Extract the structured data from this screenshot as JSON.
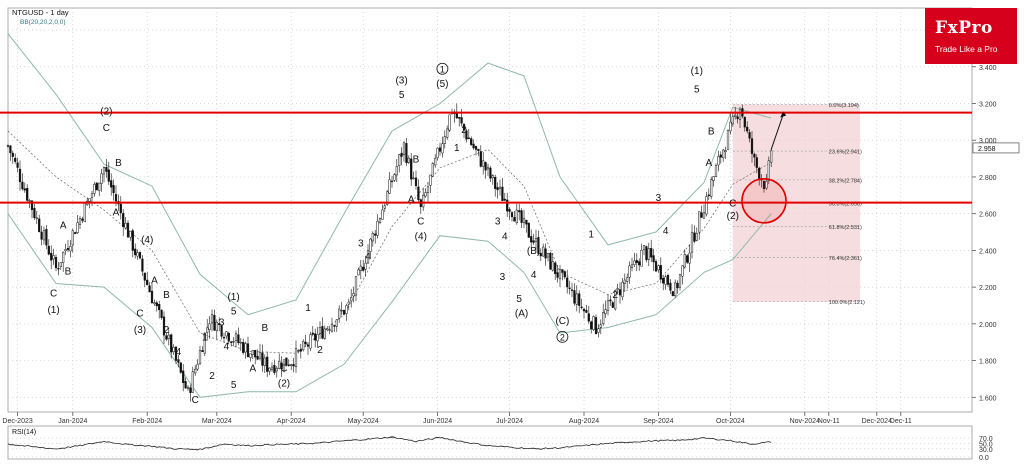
{
  "chart_data": {
    "type": "candlestick",
    "symbol_label": "NTGUSD - 1 day",
    "indicator_label": "BB(20,20,2,0,0)",
    "y_axis": {
      "ticks": [
        1.6,
        1.8,
        2.0,
        2.2,
        2.4,
        2.6,
        2.8,
        3.0,
        3.2,
        3.4,
        3.6
      ],
      "tick_labels": [
        "1.600",
        "1.800",
        "2.000",
        "2.200",
        "2.400",
        "2.600",
        "2.800",
        "3.000",
        "3.200",
        "3.400",
        "3.600"
      ],
      "range": [
        1.52,
        3.72
      ],
      "current_price": 2.958,
      "current_price_label": "2.958"
    },
    "x_axis": {
      "labels": [
        {
          "label": "Dec-2023",
          "idx": 4
        },
        {
          "label": "Jan-2024",
          "idx": 27
        },
        {
          "label": "Feb-2024",
          "idx": 58
        },
        {
          "label": "Mar-2024",
          "idx": 87
        },
        {
          "label": "Apr-2024",
          "idx": 118
        },
        {
          "label": "May-2024",
          "idx": 148
        },
        {
          "label": "Jun-2024",
          "idx": 179
        },
        {
          "label": "Jul-2024",
          "idx": 209
        },
        {
          "label": "Aug-2024",
          "idx": 240
        },
        {
          "label": "Sep-2024",
          "idx": 271
        },
        {
          "label": "Oct-2024",
          "idx": 301
        },
        {
          "label": "Nov-2024",
          "idx": 332
        },
        {
          "label": "Nov-11",
          "idx": 342
        },
        {
          "label": "Dec-2024",
          "idx": 362
        },
        {
          "label": "Dec-11",
          "idx": 372
        }
      ]
    },
    "price_path": [
      [
        0,
        2.97
      ],
      [
        20,
        2.3
      ],
      [
        40,
        2.85
      ],
      [
        75,
        1.62
      ],
      [
        84,
        2.03
      ],
      [
        108,
        1.77
      ],
      [
        118,
        1.8
      ],
      [
        142,
        2.1
      ],
      [
        165,
        2.97
      ],
      [
        172,
        2.62
      ],
      [
        185,
        3.17
      ],
      [
        203,
        2.75
      ],
      [
        245,
        1.98
      ],
      [
        265,
        2.4
      ],
      [
        278,
        2.18
      ],
      [
        297,
        2.92
      ],
      [
        305,
        3.19
      ],
      [
        311,
        2.88
      ],
      [
        316,
        2.74
      ],
      [
        318,
        2.95
      ]
    ],
    "bollinger": {
      "upper": [
        [
          0,
          3.58
        ],
        [
          20,
          3.25
        ],
        [
          40,
          2.87
        ],
        [
          60,
          2.75
        ],
        [
          80,
          2.27
        ],
        [
          100,
          2.05
        ],
        [
          120,
          2.13
        ],
        [
          140,
          2.6
        ],
        [
          160,
          3.05
        ],
        [
          180,
          3.2
        ],
        [
          200,
          3.42
        ],
        [
          215,
          3.35
        ],
        [
          230,
          2.8
        ],
        [
          250,
          2.43
        ],
        [
          270,
          2.5
        ],
        [
          290,
          2.77
        ],
        [
          302,
          3.18
        ],
        [
          318,
          3.12
        ]
      ],
      "middle": [
        [
          0,
          3.05
        ],
        [
          20,
          2.8
        ],
        [
          40,
          2.62
        ],
        [
          60,
          2.4
        ],
        [
          80,
          1.95
        ],
        [
          100,
          1.85
        ],
        [
          120,
          1.84
        ],
        [
          140,
          2.05
        ],
        [
          160,
          2.53
        ],
        [
          180,
          2.85
        ],
        [
          200,
          2.95
        ],
        [
          215,
          2.75
        ],
        [
          230,
          2.28
        ],
        [
          250,
          2.16
        ],
        [
          270,
          2.22
        ],
        [
          290,
          2.52
        ],
        [
          302,
          2.76
        ],
        [
          318,
          2.88
        ]
      ],
      "lower": [
        [
          0,
          2.6
        ],
        [
          20,
          2.22
        ],
        [
          40,
          2.2
        ],
        [
          60,
          1.98
        ],
        [
          80,
          1.6
        ],
        [
          100,
          1.63
        ],
        [
          120,
          1.63
        ],
        [
          140,
          1.78
        ],
        [
          160,
          2.12
        ],
        [
          180,
          2.48
        ],
        [
          200,
          2.45
        ],
        [
          215,
          2.28
        ],
        [
          230,
          1.95
        ],
        [
          250,
          1.98
        ],
        [
          270,
          2.05
        ],
        [
          290,
          2.28
        ],
        [
          302,
          2.35
        ],
        [
          318,
          2.6
        ]
      ]
    },
    "horizontal_levels": [
      3.15,
      2.66
    ],
    "fibonacci": {
      "from_idx": 302,
      "to_idx": 355,
      "levels": [
        {
          "label": "0.0%(3.194)",
          "value": 3.194
        },
        {
          "label": "23.6%(2.941)",
          "value": 2.941
        },
        {
          "label": "38.2%(2.784)",
          "value": 2.784
        },
        {
          "label": "50.0%(2.658)",
          "value": 2.658
        },
        {
          "label": "61.8%(2.531)",
          "value": 2.531
        },
        {
          "label": "76.4%(2.361)",
          "value": 2.361
        },
        {
          "label": "100.0%(2.121)",
          "value": 2.121
        }
      ]
    },
    "highlight_circle": {
      "idx": 315,
      "price": 2.67
    },
    "projection_arrow": {
      "from": [
        318,
        2.95
      ],
      "to": [
        323,
        3.14
      ]
    },
    "wave_labels": [
      {
        "t": "C",
        "idx": 19,
        "p": 2.15
      },
      {
        "t": "(1)",
        "idx": 19,
        "p": 2.06
      },
      {
        "t": "A",
        "idx": 23,
        "p": 2.52
      },
      {
        "t": "B",
        "idx": 25,
        "p": 2.27
      },
      {
        "t": "(2)",
        "idx": 41,
        "p": 3.14
      },
      {
        "t": "C",
        "idx": 41,
        "p": 3.05
      },
      {
        "t": "B",
        "idx": 46,
        "p": 2.86
      },
      {
        "t": "A",
        "idx": 45,
        "p": 2.59
      },
      {
        "t": "(4)",
        "idx": 58,
        "p": 2.44
      },
      {
        "t": "A",
        "idx": 61,
        "p": 2.22
      },
      {
        "t": "B",
        "idx": 66,
        "p": 2.14
      },
      {
        "t": "C",
        "idx": 55,
        "p": 2.04
      },
      {
        "t": "(3)",
        "idx": 55,
        "p": 1.95
      },
      {
        "t": "2",
        "idx": 66,
        "p": 1.95
      },
      {
        "t": "4",
        "idx": 71,
        "p": 1.83
      },
      {
        "t": "1",
        "idx": 82,
        "p": 1.91
      },
      {
        "t": "2",
        "idx": 85,
        "p": 1.7
      },
      {
        "t": "3",
        "idx": 89,
        "p": 1.99
      },
      {
        "t": "4",
        "idx": 91,
        "p": 1.86
      },
      {
        "t": "5",
        "idx": 94,
        "p": 1.65
      },
      {
        "t": "(1)",
        "idx": 94,
        "p": 2.13
      },
      {
        "t": "5",
        "idx": 94,
        "p": 2.05
      },
      {
        "t": "C",
        "idx": 78,
        "p": 1.57
      },
      {
        "t": "A",
        "idx": 102,
        "p": 1.74
      },
      {
        "t": "B",
        "idx": 107,
        "p": 1.96
      },
      {
        "t": "C",
        "idx": 115,
        "p": 1.74
      },
      {
        "t": "(2)",
        "idx": 115,
        "p": 1.66
      },
      {
        "t": "1",
        "idx": 125,
        "p": 2.07
      },
      {
        "t": "2",
        "idx": 130,
        "p": 1.84
      },
      {
        "t": "3",
        "idx": 147,
        "p": 2.42
      },
      {
        "t": "4",
        "idx": 150,
        "p": 2.35
      },
      {
        "t": "(3)",
        "idx": 164,
        "p": 3.31
      },
      {
        "t": "5",
        "idx": 164,
        "p": 3.23
      },
      {
        "t": "B",
        "idx": 170,
        "p": 2.88
      },
      {
        "t": "A",
        "idx": 168,
        "p": 2.66
      },
      {
        "t": "C",
        "idx": 172,
        "p": 2.54
      },
      {
        "t": "(4)",
        "idx": 172,
        "p": 2.46
      },
      {
        "t": "(5)",
        "idx": 181,
        "p": 3.29
      },
      {
        "t": "1",
        "idx": 187,
        "p": 2.94
      },
      {
        "t": "2",
        "idx": 190,
        "p": 3.04
      },
      {
        "t": "3",
        "idx": 204,
        "p": 2.54
      },
      {
        "t": "4",
        "idx": 207,
        "p": 2.46
      },
      {
        "t": "3",
        "idx": 206,
        "p": 2.24
      },
      {
        "t": "5",
        "idx": 213,
        "p": 2.12
      },
      {
        "t": "(A)",
        "idx": 214,
        "p": 2.04
      },
      {
        "t": "(B)",
        "idx": 219,
        "p": 2.38
      },
      {
        "t": "4",
        "idx": 219,
        "p": 2.25
      },
      {
        "t": "(C)",
        "idx": 231,
        "p": 2.0
      },
      {
        "t": "1",
        "idx": 243,
        "p": 2.47
      },
      {
        "t": "2",
        "idx": 253,
        "p": 2.14
      },
      {
        "t": "3",
        "idx": 271,
        "p": 2.67
      },
      {
        "t": "4",
        "idx": 274,
        "p": 2.49
      },
      {
        "t": "(1)",
        "idx": 287,
        "p": 3.36
      },
      {
        "t": "5",
        "idx": 287,
        "p": 3.26
      },
      {
        "t": "B",
        "idx": 293,
        "p": 3.03
      },
      {
        "t": "A",
        "idx": 292,
        "p": 2.86
      },
      {
        "t": "C",
        "idx": 302,
        "p": 2.64
      },
      {
        "t": "(2)",
        "idx": 302,
        "p": 2.57
      }
    ],
    "circled_labels": [
      {
        "t": "1",
        "idx": 181,
        "p": 3.37
      },
      {
        "t": "2",
        "idx": 231,
        "p": 1.91
      }
    ],
    "rsi": {
      "label": "RSI(14)",
      "tick_labels": [
        "70.0",
        "50.0",
        "30.0",
        "0.0"
      ],
      "ticks": [
        70,
        50,
        30,
        0
      ],
      "values": [
        [
          0,
          48
        ],
        [
          10,
          38
        ],
        [
          20,
          30
        ],
        [
          30,
          42
        ],
        [
          40,
          58
        ],
        [
          50,
          46
        ],
        [
          60,
          40
        ],
        [
          70,
          30
        ],
        [
          80,
          28
        ],
        [
          90,
          48
        ],
        [
          100,
          42
        ],
        [
          110,
          46
        ],
        [
          120,
          48
        ],
        [
          130,
          52
        ],
        [
          140,
          60
        ],
        [
          150,
          66
        ],
        [
          160,
          74
        ],
        [
          170,
          58
        ],
        [
          180,
          72
        ],
        [
          190,
          56
        ],
        [
          200,
          42
        ],
        [
          210,
          36
        ],
        [
          220,
          30
        ],
        [
          230,
          34
        ],
        [
          240,
          42
        ],
        [
          250,
          50
        ],
        [
          260,
          56
        ],
        [
          270,
          60
        ],
        [
          280,
          62
        ],
        [
          290,
          70
        ],
        [
          300,
          62
        ],
        [
          310,
          48
        ],
        [
          318,
          56
        ]
      ]
    }
  },
  "logo": {
    "brand": "FxPro",
    "tagline": "Trade Like a Pro"
  },
  "colors": {
    "bull": "#1a8a2a",
    "bear": "#cc1111",
    "resistance": "#e00000",
    "fib_zone": "#f3d2d4",
    "bb": "#8fb8ad",
    "brand": "#d6001c",
    "rsi_over": "#7f7f7f",
    "rsi_under": "#d88a8a"
  }
}
